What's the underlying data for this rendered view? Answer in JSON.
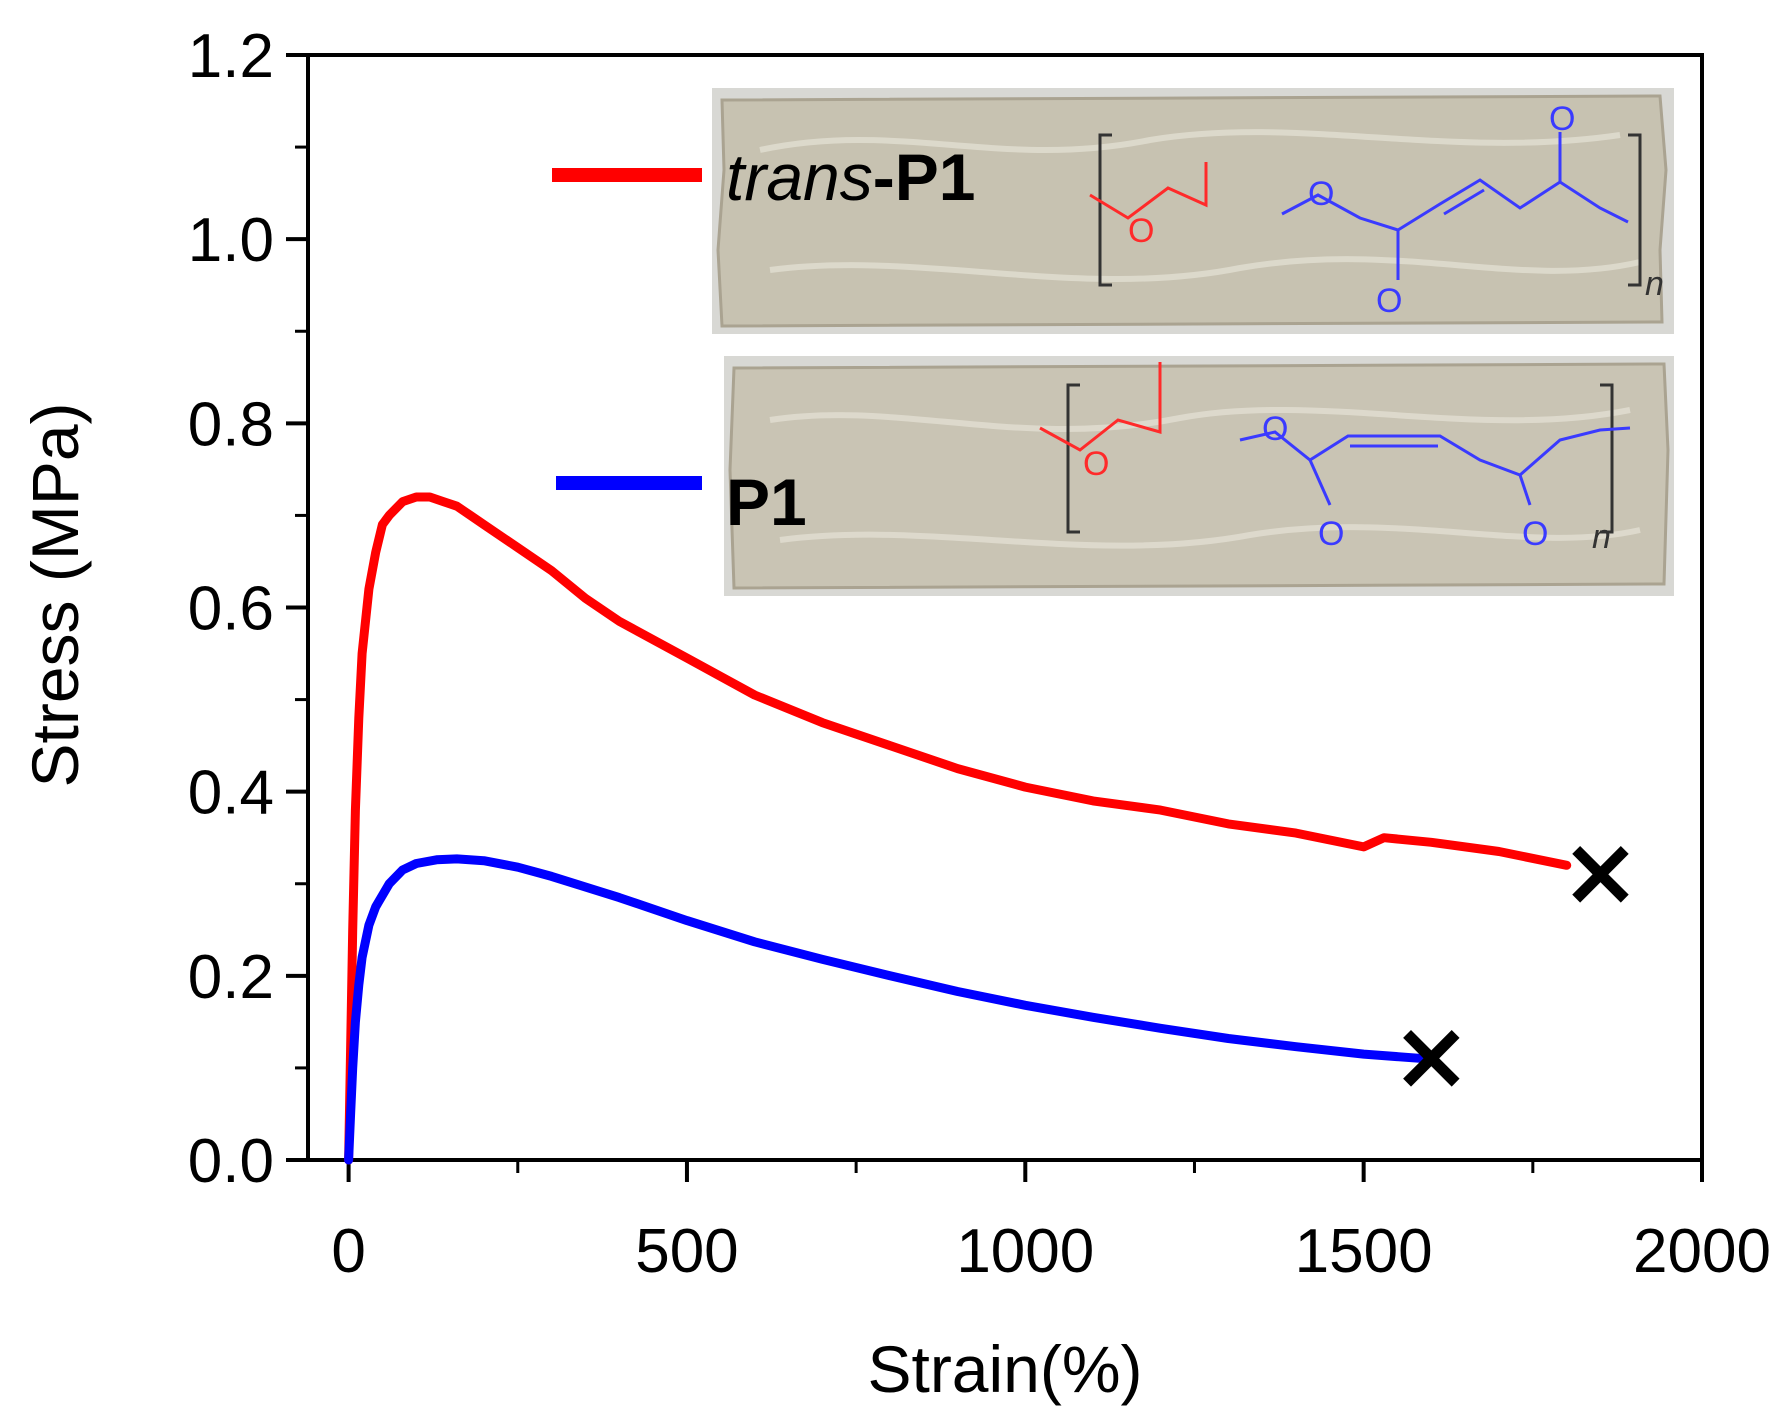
{
  "chart_data": {
    "type": "line",
    "title": "",
    "xlabel": "Strain(%)",
    "ylabel": "Stress (MPa)",
    "xlim": [
      -60,
      2000
    ],
    "ylim": [
      0,
      1.2
    ],
    "xticks": [
      0,
      500,
      1000,
      1500,
      2000
    ],
    "yticks": [
      0.0,
      0.2,
      0.4,
      0.6,
      0.8,
      1.0,
      1.2
    ],
    "xtick_labels": [
      "0",
      "500",
      "1000",
      "1500",
      "2000"
    ],
    "ytick_labels": [
      "0.0",
      "0.2",
      "0.4",
      "0.6",
      "0.8",
      "1.0",
      "1.2"
    ],
    "grid": false,
    "legend_position": "top-left inside plot",
    "series": [
      {
        "name": "trans-P1",
        "name_italic": "trans",
        "name_bold": "-P1",
        "color": "#ff0000",
        "x": [
          0,
          3,
          6,
          10,
          15,
          20,
          30,
          40,
          50,
          60,
          80,
          100,
          120,
          140,
          160,
          180,
          200,
          250,
          300,
          350,
          400,
          450,
          500,
          600,
          700,
          800,
          900,
          1000,
          1100,
          1200,
          1300,
          1400,
          1500,
          1530,
          1600,
          1700,
          1800
        ],
        "y": [
          0.0,
          0.12,
          0.25,
          0.38,
          0.48,
          0.55,
          0.62,
          0.66,
          0.69,
          0.7,
          0.715,
          0.72,
          0.72,
          0.715,
          0.71,
          0.7,
          0.69,
          0.665,
          0.64,
          0.61,
          0.585,
          0.565,
          0.545,
          0.505,
          0.475,
          0.45,
          0.425,
          0.405,
          0.39,
          0.38,
          0.365,
          0.355,
          0.34,
          0.35,
          0.345,
          0.335,
          0.32
        ],
        "break_marker": {
          "x": 1850,
          "y": 0.31,
          "label": "×"
        }
      },
      {
        "name": "P1",
        "color": "#0000ff",
        "x": [
          0,
          3,
          6,
          10,
          15,
          20,
          30,
          40,
          60,
          80,
          100,
          130,
          160,
          200,
          250,
          300,
          400,
          500,
          600,
          700,
          800,
          900,
          1000,
          1100,
          1200,
          1300,
          1400,
          1500,
          1590
        ],
        "y": [
          0.0,
          0.05,
          0.1,
          0.15,
          0.19,
          0.22,
          0.255,
          0.275,
          0.3,
          0.315,
          0.322,
          0.326,
          0.327,
          0.325,
          0.318,
          0.308,
          0.285,
          0.26,
          0.237,
          0.218,
          0.2,
          0.183,
          0.168,
          0.155,
          0.143,
          0.132,
          0.123,
          0.115,
          0.11
        ],
        "break_marker": {
          "x": 1600,
          "y": 0.11,
          "label": "×"
        }
      }
    ],
    "insets": [
      {
        "name": "trans-P1 film photo with structure",
        "atom_label": "O",
        "repeat_label": "n",
        "colors": {
          "film": "#c9c4b4",
          "film_edge": "#a9a394",
          "frame": "#d8d8d8",
          "chain_red": "#ff2a2a",
          "chain_blue": "#3a3aff"
        }
      },
      {
        "name": "P1 film photo with structure",
        "atom_label": "O",
        "repeat_label": "n"
      }
    ]
  }
}
